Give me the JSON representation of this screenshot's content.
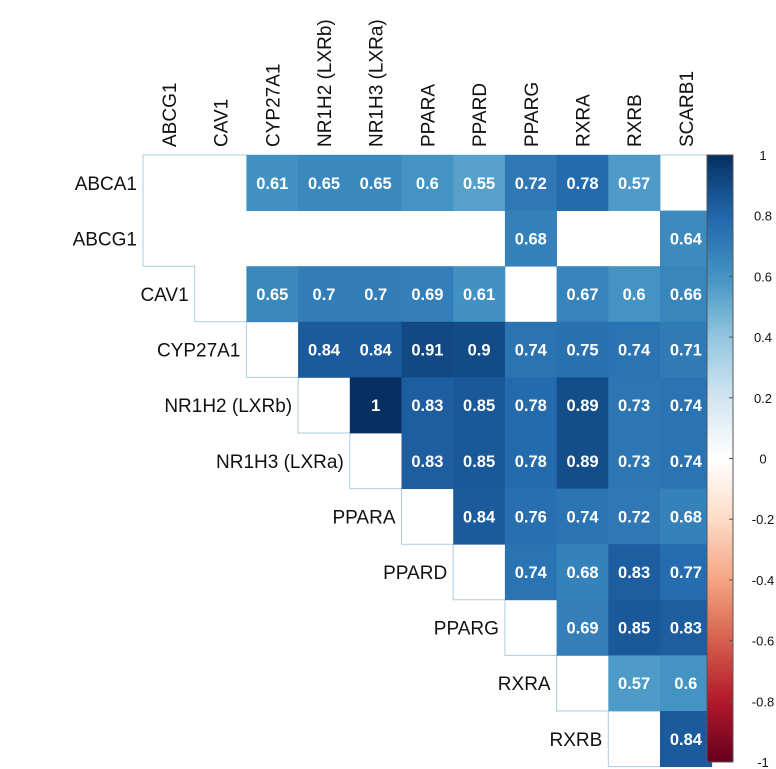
{
  "chart_data": {
    "type": "heatmap",
    "layout": "upper-triangle",
    "title": "",
    "row_labels": [
      "ABCA1",
      "ABCG1",
      "CAV1",
      "CYP27A1",
      "NR1H2 (LXRb)",
      "NR1H3 (LXRa)",
      "PPARA",
      "PPARD",
      "PPARG",
      "RXRA",
      "RXRB"
    ],
    "column_labels": [
      "ABCG1",
      "CAV1",
      "CYP27A1",
      "NR1H2 (LXRb)",
      "NR1H3 (LXRa)",
      "PPARA",
      "PPARD",
      "PPARG",
      "RXRA",
      "RXRB",
      "SCARB1"
    ],
    "values": [
      [
        null,
        null,
        0.61,
        0.65,
        0.65,
        0.6,
        0.55,
        0.72,
        0.78,
        0.57,
        null
      ],
      [
        null,
        null,
        null,
        null,
        null,
        null,
        null,
        0.68,
        null,
        null,
        0.64
      ],
      [
        null,
        null,
        0.65,
        0.7,
        0.7,
        0.69,
        0.61,
        null,
        0.67,
        0.6,
        0.66
      ],
      [
        null,
        null,
        null,
        0.84,
        0.84,
        0.91,
        0.9,
        0.74,
        0.75,
        0.74,
        0.71
      ],
      [
        null,
        null,
        null,
        null,
        1,
        0.83,
        0.85,
        0.78,
        0.89,
        0.73,
        0.74
      ],
      [
        null,
        null,
        null,
        null,
        null,
        0.83,
        0.85,
        0.78,
        0.89,
        0.73,
        0.74
      ],
      [
        null,
        null,
        null,
        null,
        null,
        null,
        0.84,
        0.76,
        0.74,
        0.72,
        0.68
      ],
      [
        null,
        null,
        null,
        null,
        null,
        null,
        null,
        0.74,
        0.68,
        0.83,
        0.77
      ],
      [
        null,
        null,
        null,
        null,
        null,
        null,
        null,
        null,
        0.69,
        0.85,
        0.83
      ],
      [
        null,
        null,
        null,
        null,
        null,
        null,
        null,
        null,
        null,
        0.57,
        0.6
      ],
      [
        null,
        null,
        null,
        null,
        null,
        null,
        null,
        null,
        null,
        null,
        0.84
      ]
    ],
    "color_scale": {
      "min": -1,
      "max": 1,
      "ticks": [
        1,
        0.8,
        0.6,
        0.4,
        0.2,
        0,
        -0.2,
        -0.4,
        -0.6,
        -0.8,
        -1
      ],
      "colors": {
        "negative": "#67001f",
        "neutral": "#ffffff",
        "positive": "#053061"
      }
    },
    "grid": false,
    "legend": "right"
  }
}
